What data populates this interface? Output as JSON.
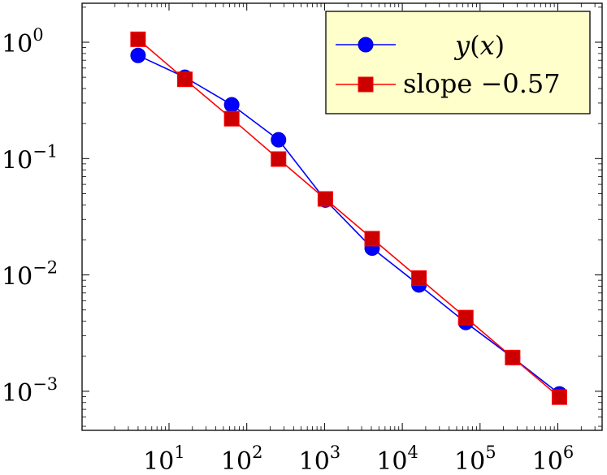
{
  "chart_data": {
    "type": "line",
    "xscale": "log",
    "yscale": "log",
    "xlim": [
      2,
      1500000
    ],
    "ylim": [
      0.00045,
      2.1
    ],
    "x_ticks": [
      {
        "base": "10",
        "exp": "1",
        "value": 10
      },
      {
        "base": "10",
        "exp": "2",
        "value": 100
      },
      {
        "base": "10",
        "exp": "3",
        "value": 1000
      },
      {
        "base": "10",
        "exp": "4",
        "value": 10000
      },
      {
        "base": "10",
        "exp": "5",
        "value": 100000
      },
      {
        "base": "10",
        "exp": "6",
        "value": 1000000
      }
    ],
    "y_ticks": [
      {
        "base": "10",
        "exp": "0",
        "value": 1
      },
      {
        "base": "10",
        "exp": "−1",
        "value": 0.1
      },
      {
        "base": "10",
        "exp": "−2",
        "value": 0.01
      },
      {
        "base": "10",
        "exp": "−3",
        "value": 0.001
      }
    ],
    "series": [
      {
        "name": "y(x)",
        "color": "#0000ff",
        "marker": "circle",
        "points": [
          [
            4,
            0.77
          ],
          [
            16,
            0.5
          ],
          [
            64,
            0.29
          ],
          [
            256,
            0.145
          ],
          [
            1024,
            0.044
          ],
          [
            4096,
            0.017
          ],
          [
            16384,
            0.0082
          ],
          [
            65536,
            0.0039
          ],
          [
            262144,
            0.00195
          ],
          [
            1048576,
            0.00095
          ]
        ]
      },
      {
        "name": "slope −0.57",
        "color": "#ff0000",
        "marker": "square",
        "points": [
          [
            4,
            1.06
          ],
          [
            16,
            0.48
          ],
          [
            64,
            0.22
          ],
          [
            256,
            0.099
          ],
          [
            1024,
            0.045
          ],
          [
            4096,
            0.0205
          ],
          [
            16384,
            0.0094
          ],
          [
            65536,
            0.0043
          ],
          [
            262144,
            0.00195
          ],
          [
            1048576,
            0.00089
          ]
        ]
      }
    ],
    "legend": {
      "position": "top-right",
      "background": "#ffffcc",
      "entries": [
        {
          "label_italic_var": "y",
          "label_open": "(",
          "label_italic_arg": "x",
          "label_close": ")"
        },
        {
          "label": "slope −0.57"
        }
      ]
    },
    "grid": false
  }
}
